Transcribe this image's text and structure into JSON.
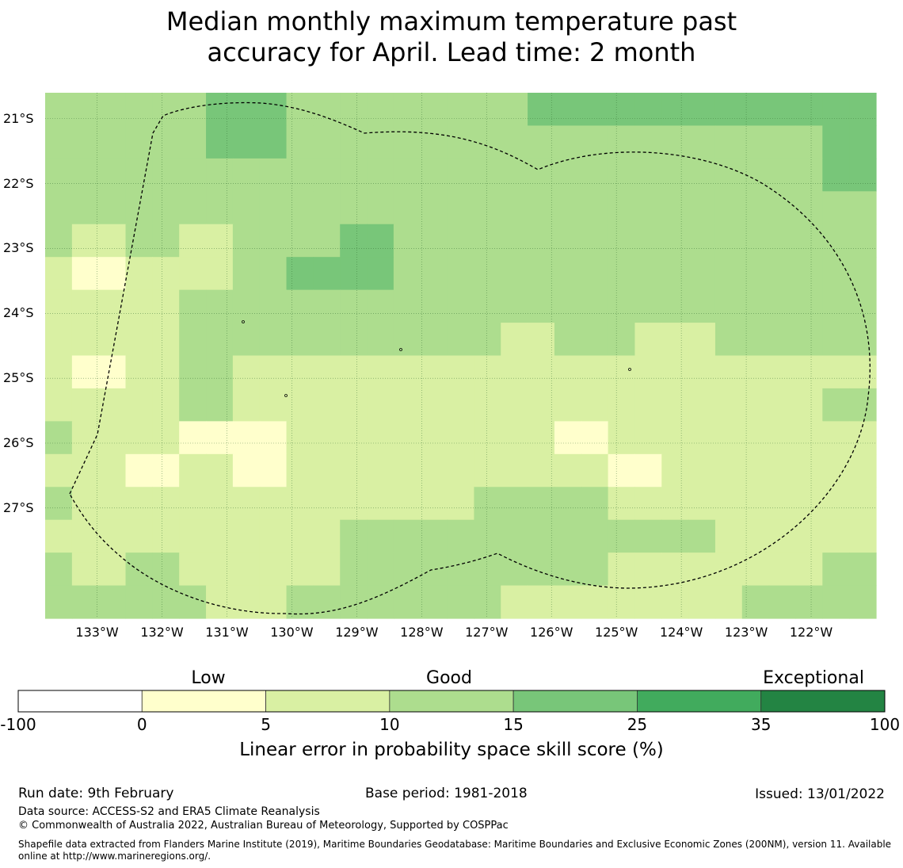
{
  "title": {
    "line1": "Median monthly maximum temperature past",
    "line2": "accuracy for April. Lead time: 2 month"
  },
  "map": {
    "lat_labels": [
      "21°S",
      "22°S",
      "23°S",
      "24°S",
      "25°S",
      "26°S",
      "27°S"
    ],
    "lon_labels": [
      "133°W",
      "132°W",
      "131°W",
      "130°W",
      "129°W",
      "128°W",
      "127°W",
      "126°W",
      "125°W",
      "124°W",
      "123°W",
      "122°W"
    ],
    "lon_range": [
      -133.8,
      -121.0
    ],
    "lat_range": [
      -20.6,
      -28.7
    ],
    "cell_size_deg": 0.5,
    "grid_classes": [
      [
        3,
        3,
        3,
        3,
        3,
        3,
        4,
        4,
        4,
        3,
        3,
        3,
        3,
        3,
        3,
        3,
        3,
        3,
        3,
        3,
        3,
        3,
        3,
        3,
        3,
        3,
        3,
        3,
        3,
        3,
        3
      ],
      [
        3,
        3,
        3,
        3,
        3,
        3,
        4,
        4,
        4,
        3,
        3,
        3,
        3,
        3,
        3,
        3,
        3,
        3,
        3,
        3,
        3,
        3,
        3,
        3,
        3,
        3,
        3,
        3,
        3,
        4,
        4
      ],
      [
        3,
        3,
        3,
        3,
        3,
        3,
        3,
        3,
        3,
        3,
        3,
        3,
        3,
        3,
        3,
        3,
        3,
        3,
        3,
        3,
        3,
        3,
        3,
        3,
        3,
        3,
        3,
        3,
        3,
        4,
        4
      ],
      [
        3,
        3,
        3,
        3,
        3,
        3,
        3,
        3,
        3,
        3,
        3,
        3,
        3,
        3,
        3,
        3,
        3,
        3,
        3,
        3,
        3,
        3,
        3,
        3,
        3,
        3,
        3,
        3,
        3,
        3,
        3
      ],
      [
        3,
        2,
        2,
        3,
        3,
        2,
        2,
        3,
        3,
        3,
        3,
        4,
        4,
        3,
        3,
        3,
        3,
        3,
        3,
        3,
        3,
        3,
        3,
        3,
        3,
        3,
        3,
        3,
        3,
        3,
        3
      ],
      [
        2,
        1,
        1,
        2,
        2,
        2,
        2,
        3,
        3,
        4,
        4,
        4,
        4,
        3,
        3,
        3,
        3,
        3,
        3,
        3,
        3,
        3,
        3,
        3,
        3,
        3,
        3,
        3,
        3,
        3,
        3
      ],
      [
        2,
        2,
        2,
        2,
        2,
        3,
        3,
        3,
        3,
        3,
        3,
        3,
        3,
        3,
        3,
        3,
        3,
        3,
        3,
        3,
        3,
        3,
        3,
        3,
        3,
        3,
        3,
        3,
        3,
        3,
        3
      ],
      [
        2,
        2,
        2,
        2,
        2,
        3,
        3,
        3,
        3,
        3,
        3,
        3,
        3,
        3,
        3,
        3,
        3,
        2,
        2,
        3,
        3,
        3,
        2,
        2,
        2,
        3,
        3,
        3,
        3,
        3,
        3
      ],
      [
        2,
        1,
        1,
        2,
        2,
        3,
        3,
        2,
        2,
        2,
        2,
        2,
        2,
        2,
        2,
        2,
        2,
        2,
        2,
        2,
        2,
        2,
        2,
        2,
        2,
        2,
        2,
        2,
        2,
        2,
        2
      ],
      [
        2,
        2,
        2,
        2,
        2,
        3,
        3,
        2,
        2,
        2,
        2,
        2,
        2,
        2,
        2,
        2,
        2,
        2,
        2,
        2,
        2,
        2,
        2,
        2,
        2,
        2,
        2,
        2,
        2,
        3,
        3
      ],
      [
        3,
        2,
        2,
        2,
        2,
        1,
        1,
        1,
        1,
        2,
        2,
        2,
        2,
        2,
        2,
        2,
        2,
        2,
        2,
        1,
        1,
        2,
        2,
        2,
        2,
        2,
        2,
        2,
        2,
        2,
        2
      ],
      [
        2,
        2,
        2,
        1,
        1,
        2,
        2,
        1,
        1,
        2,
        2,
        2,
        2,
        2,
        2,
        2,
        2,
        2,
        2,
        2,
        2,
        1,
        1,
        2,
        2,
        2,
        2,
        2,
        2,
        2,
        2
      ],
      [
        3,
        2,
        2,
        2,
        2,
        2,
        2,
        2,
        2,
        2,
        2,
        2,
        2,
        2,
        2,
        2,
        3,
        3,
        3,
        3,
        3,
        2,
        2,
        2,
        2,
        2,
        2,
        2,
        2,
        2,
        2
      ],
      [
        2,
        2,
        2,
        2,
        2,
        2,
        2,
        2,
        2,
        2,
        2,
        3,
        3,
        3,
        3,
        3,
        3,
        3,
        3,
        3,
        3,
        3,
        3,
        3,
        3,
        2,
        2,
        2,
        2,
        2,
        2
      ],
      [
        3,
        2,
        2,
        3,
        3,
        2,
        2,
        2,
        2,
        2,
        2,
        3,
        3,
        3,
        3,
        3,
        3,
        3,
        3,
        3,
        3,
        2,
        2,
        2,
        2,
        2,
        2,
        2,
        2,
        3,
        3
      ],
      [
        3,
        3,
        3,
        3,
        3,
        3,
        2,
        2,
        2,
        3,
        3,
        3,
        3,
        3,
        3,
        3,
        3,
        2,
        2,
        2,
        2,
        2,
        2,
        2,
        2,
        2,
        3,
        3,
        3,
        3,
        3
      ]
    ],
    "grid_exceptions": [
      {
        "row": 0,
        "col": 18,
        "cls": 4
      },
      {
        "row": 0,
        "col": 19,
        "cls": 4
      },
      {
        "row": 0,
        "col": 20,
        "cls": 4
      },
      {
        "row": 0,
        "col": 21,
        "cls": 4
      },
      {
        "row": 0,
        "col": 22,
        "cls": 4
      },
      {
        "row": 0,
        "col": 23,
        "cls": 4
      },
      {
        "row": 0,
        "col": 24,
        "cls": 4
      },
      {
        "row": 0,
        "col": 25,
        "cls": 4
      },
      {
        "row": 0,
        "col": 26,
        "cls": 4
      },
      {
        "row": 0,
        "col": 27,
        "cls": 4
      },
      {
        "row": 0,
        "col": 28,
        "cls": 4
      },
      {
        "row": 0,
        "col": 29,
        "cls": 4
      },
      {
        "row": 0,
        "col": 30,
        "cls": 4
      }
    ],
    "colors": {
      "grid_line": "#2f6b2f",
      "boundary": "#000000",
      "background": "#ffffff"
    }
  },
  "colorbar": {
    "categories": [
      {
        "label": "Low",
        "position": "left"
      },
      {
        "label": "Good",
        "position": "center"
      },
      {
        "label": "Exceptional",
        "position": "right"
      }
    ],
    "ticks": [
      "-100",
      "0",
      "5",
      "10",
      "15",
      "25",
      "35",
      "100"
    ],
    "bins": [
      {
        "from": -100,
        "to": 0,
        "color": "#ffffff"
      },
      {
        "from": 0,
        "to": 5,
        "color": "#ffffcc"
      },
      {
        "from": 5,
        "to": 10,
        "color": "#d9f0a3"
      },
      {
        "from": 10,
        "to": 15,
        "color": "#addd8e"
      },
      {
        "from": 15,
        "to": 25,
        "color": "#78c679"
      },
      {
        "from": 25,
        "to": 35,
        "color": "#41ab5d"
      },
      {
        "from": 35,
        "to": 100,
        "color": "#238443"
      }
    ],
    "label": "Linear error in probability space skill score (%)"
  },
  "footer": {
    "run_date": "Run date: 9th February",
    "base_period": "Base period: 1981-2018",
    "issued": "Issued: 13/01/2022",
    "data_source": "Data source: ACCESS-S2 and ERA5 Climate Reanalysis",
    "copyright": "© Commonwealth of Australia 2022, Australian Bureau of Meteorology, Supported by COSPPac",
    "shapefile": "Shapefile data extracted from Flanders Marine Institute (2019), Maritime Boundaries Geodatabase: Maritime Boundaries and Exclusive Economic Zones (200NM), version 11. Available online at http://www.marineregions.org/."
  }
}
